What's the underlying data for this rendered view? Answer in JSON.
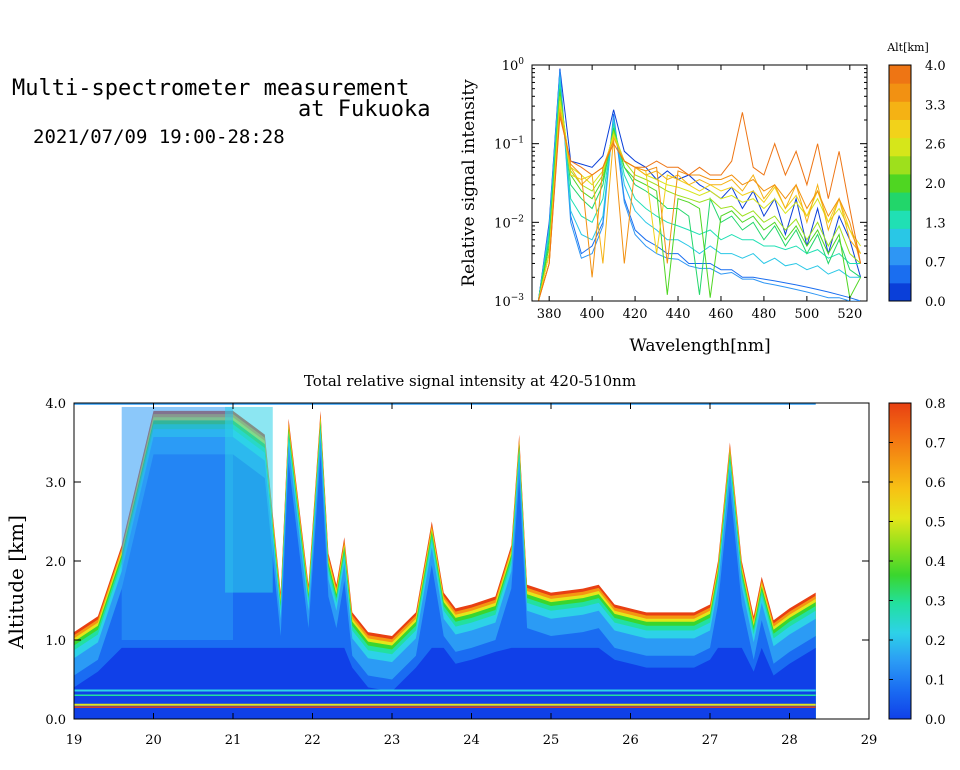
{
  "header": {
    "title_line1": "Multi-spectrometer measurement",
    "title_line2": "at Fukuoka",
    "datetime": "2021/07/09 19:00-28:28"
  },
  "chart_data": [
    {
      "type": "line",
      "title": "",
      "xlabel": "Wavelength[nm]",
      "ylabel": "Relative signal intensity",
      "yscale": "log",
      "xlim": [
        372,
        528
      ],
      "ylim": [
        0.001,
        1
      ],
      "x_ticks": [
        380,
        400,
        420,
        440,
        460,
        480,
        500,
        520
      ],
      "y_ticks": [
        {
          "value": 0.001,
          "label_base": "10",
          "label_exp": "−3"
        },
        {
          "value": 0.01,
          "label_base": "10",
          "label_exp": "−2"
        },
        {
          "value": 0.1,
          "label_base": "10",
          "label_exp": "−1"
        },
        {
          "value": 1,
          "label_base": "10",
          "label_exp": "0"
        }
      ],
      "colorbar": {
        "label": "Alt[km]",
        "ticks": [
          "4.0",
          "3.3",
          "2.6",
          "2.0",
          "1.3",
          "0.7",
          "0.0"
        ],
        "colors": [
          "#0a3fd9",
          "#1a6ef0",
          "#2e96f4",
          "#29c7e6",
          "#20e0b4",
          "#22d66a",
          "#4fd622",
          "#9ee01c",
          "#d6e61a",
          "#f2d21a",
          "#f5b214",
          "#f29112",
          "#ee7514"
        ]
      },
      "x": [
        375,
        380,
        385,
        390,
        395,
        400,
        405,
        410,
        415,
        420,
        425,
        430,
        435,
        440,
        445,
        450,
        455,
        460,
        465,
        470,
        475,
        480,
        485,
        490,
        495,
        500,
        505,
        510,
        515,
        520,
        525
      ],
      "series": [
        {
          "altitude_km": 0.0,
          "color": "#0a3fd9",
          "values": [
            0.001,
            0.01,
            0.9,
            0.06,
            0.055,
            0.05,
            0.07,
            0.27,
            0.08,
            0.06,
            0.05,
            0.035,
            0.045,
            0.035,
            0.04,
            0.03,
            0.025,
            0.02,
            0.028,
            0.015,
            0.025,
            0.012,
            0.02,
            0.007,
            0.02,
            0.005,
            0.015,
            0.004,
            0.012,
            0.006,
            0.002
          ]
        },
        {
          "altitude_km": 0.3,
          "color": "#1a6ef0",
          "values": [
            0.001,
            0.009,
            0.85,
            0.012,
            0.004,
            0.005,
            0.01,
            0.24,
            0.02,
            0.008,
            0.006,
            0.005,
            0.004,
            0.004,
            0.003,
            0.003,
            0.003,
            0.0025,
            0.0025,
            0.002,
            0.002,
            0.0019,
            0.0018,
            0.0017,
            0.0016,
            0.0015,
            0.0014,
            0.0013,
            0.0012,
            0.0011,
            0.001
          ]
        },
        {
          "altitude_km": 0.5,
          "color": "#2e96f4",
          "values": [
            0.001,
            0.009,
            0.85,
            0.01,
            0.0035,
            0.004,
            0.009,
            0.22,
            0.018,
            0.007,
            0.005,
            0.004,
            0.0035,
            0.0034,
            0.0028,
            0.0026,
            0.0026,
            0.0022,
            0.0023,
            0.0019,
            0.0019,
            0.0017,
            0.0016,
            0.0015,
            0.0014,
            0.0013,
            0.0012,
            0.0011,
            0.0011,
            0.001,
            0.001
          ]
        },
        {
          "altitude_km": 0.9,
          "color": "#29c7e6",
          "values": [
            0.001,
            0.008,
            0.7,
            0.014,
            0.007,
            0.006,
            0.012,
            0.2,
            0.03,
            0.014,
            0.01,
            0.008,
            0.006,
            0.006,
            0.005,
            0.004,
            0.005,
            0.004,
            0.004,
            0.0035,
            0.004,
            0.003,
            0.0035,
            0.0028,
            0.003,
            0.0025,
            0.0028,
            0.0022,
            0.0025,
            0.002,
            0.002
          ]
        },
        {
          "altitude_km": 1.3,
          "color": "#20e0b4",
          "values": [
            0.001,
            0.007,
            0.6,
            0.02,
            0.012,
            0.01,
            0.02,
            0.18,
            0.04,
            0.02,
            0.015,
            0.012,
            0.01,
            0.009,
            0.008,
            0.007,
            0.008,
            0.006,
            0.007,
            0.006,
            0.006,
            0.005,
            0.005,
            0.0045,
            0.005,
            0.004,
            0.0045,
            0.0035,
            0.004,
            0.003,
            0.003
          ]
        },
        {
          "altitude_km": 1.6,
          "color": "#22d66a",
          "values": [
            0.001,
            0.006,
            0.5,
            0.03,
            0.02,
            0.015,
            0.03,
            0.16,
            0.05,
            0.03,
            0.025,
            0.02,
            0.015,
            0.015,
            0.012,
            0.0012,
            0.02,
            0.01,
            0.012,
            0.008,
            0.01,
            0.006,
            0.009,
            0.005,
            0.008,
            0.004,
            0.007,
            0.003,
            0.006,
            0.0025,
            0.002
          ]
        },
        {
          "altitude_km": 2.0,
          "color": "#4fd622",
          "values": [
            0.001,
            0.005,
            0.45,
            0.04,
            0.025,
            0.02,
            0.035,
            0.15,
            0.05,
            0.035,
            0.03,
            0.025,
            0.0012,
            0.02,
            0.018,
            0.015,
            0.0011,
            0.012,
            0.014,
            0.01,
            0.012,
            0.008,
            0.01,
            0.006,
            0.009,
            0.005,
            0.008,
            0.004,
            0.007,
            0.0011,
            0.002
          ]
        },
        {
          "altitude_km": 2.3,
          "color": "#9ee01c",
          "values": [
            0.001,
            0.004,
            0.4,
            0.045,
            0.03,
            0.025,
            0.04,
            0.14,
            0.06,
            0.04,
            0.035,
            0.03,
            0.025,
            0.022,
            0.02,
            0.018,
            0.02,
            0.015,
            0.016,
            0.012,
            0.014,
            0.01,
            0.012,
            0.008,
            0.011,
            0.006,
            0.01,
            0.005,
            0.009,
            0.004,
            0.003
          ]
        },
        {
          "altitude_km": 2.6,
          "color": "#d6e61a",
          "values": [
            0.001,
            0.004,
            0.35,
            0.05,
            0.04,
            0.03,
            0.045,
            0.13,
            0.06,
            0.05,
            0.04,
            0.035,
            0.03,
            0.028,
            0.025,
            0.022,
            0.025,
            0.02,
            0.022,
            0.018,
            0.02,
            0.015,
            0.02,
            0.013,
            0.018,
            0.012,
            0.02,
            0.01,
            0.015,
            0.008,
            0.005
          ]
        },
        {
          "altitude_km": 3.0,
          "color": "#f2d21a",
          "values": [
            0.001,
            0.004,
            0.3,
            0.04,
            0.035,
            0.04,
            0.05,
            0.12,
            0.06,
            0.05,
            0.045,
            0.004,
            0.04,
            0.035,
            0.03,
            0.025,
            0.03,
            0.025,
            0.028,
            0.022,
            0.025,
            0.018,
            0.028,
            0.015,
            0.022,
            0.012,
            0.025,
            0.01,
            0.02,
            0.008,
            0.004
          ]
        },
        {
          "altitude_km": 3.3,
          "color": "#f5b214",
          "values": [
            0.001,
            0.003,
            0.28,
            0.05,
            0.03,
            0.04,
            0.003,
            0.12,
            0.06,
            0.05,
            0.04,
            0.045,
            0.035,
            0.04,
            0.03,
            0.035,
            0.03,
            0.03,
            0.035,
            0.025,
            0.04,
            0.02,
            0.03,
            0.015,
            0.03,
            0.01,
            0.03,
            0.008,
            0.02,
            0.006,
            0.004
          ]
        },
        {
          "altitude_km": 3.7,
          "color": "#f29112",
          "values": [
            0.001,
            0.003,
            0.25,
            0.055,
            0.04,
            0.002,
            0.05,
            0.11,
            0.003,
            0.05,
            0.045,
            0.05,
            0.003,
            0.045,
            0.04,
            0.04,
            0.035,
            0.035,
            0.04,
            0.03,
            0.035,
            0.025,
            0.03,
            0.02,
            0.03,
            0.015,
            0.025,
            0.012,
            0.02,
            0.01,
            0.003
          ]
        },
        {
          "altitude_km": 4.0,
          "color": "#ee7514",
          "values": [
            0.001,
            0.003,
            0.22,
            0.06,
            0.05,
            0.04,
            0.05,
            0.1,
            0.06,
            0.05,
            0.05,
            0.06,
            0.05,
            0.05,
            0.04,
            0.05,
            0.04,
            0.04,
            0.06,
            0.25,
            0.05,
            0.04,
            0.1,
            0.04,
            0.08,
            0.03,
            0.1,
            0.02,
            0.08,
            0.015,
            0.003
          ]
        }
      ]
    },
    {
      "type": "heatmap",
      "title": "Total relative signal intensity at 420-510nm",
      "xlabel": "",
      "ylabel": "Altitude [km]",
      "xlim": [
        19,
        29
      ],
      "ylim": [
        0,
        4
      ],
      "x_ticks": [
        "19",
        "20",
        "21",
        "22",
        "23",
        "24",
        "25",
        "26",
        "27",
        "28",
        "29"
      ],
      "y_ticks": [
        "0.0",
        "1.0",
        "2.0",
        "3.0",
        "4.0"
      ],
      "data_end_time": 28.33,
      "colorbar": {
        "min": 0,
        "max": 0.8,
        "ticks": [
          "0.0",
          "0.1",
          "0.2",
          "0.3",
          "0.4",
          "0.5",
          "0.6",
          "0.7",
          "0.8"
        ],
        "stops": [
          "#1040e8",
          "#1a6cf2",
          "#2b9bf5",
          "#2dd2e8",
          "#22e0a0",
          "#3ad62e",
          "#8ee01c",
          "#e4e61a",
          "#f7c214",
          "#f59612",
          "#f26a12",
          "#e84012"
        ]
      },
      "cloud_base_profile_km": [
        {
          "t": 19.0,
          "h": 1.1
        },
        {
          "t": 19.3,
          "h": 1.3
        },
        {
          "t": 19.6,
          "h": 2.2
        },
        {
          "t": 20.0,
          "h": 3.9
        },
        {
          "t": 21.0,
          "h": 3.9
        },
        {
          "t": 21.4,
          "h": 3.6
        },
        {
          "t": 21.6,
          "h": 1.6
        },
        {
          "t": 21.7,
          "h": 3.8
        },
        {
          "t": 21.95,
          "h": 1.7
        },
        {
          "t": 22.1,
          "h": 3.9
        },
        {
          "t": 22.2,
          "h": 2.1
        },
        {
          "t": 22.3,
          "h": 1.7
        },
        {
          "t": 22.4,
          "h": 2.3
        },
        {
          "t": 22.5,
          "h": 1.35
        },
        {
          "t": 22.7,
          "h": 1.1
        },
        {
          "t": 23.0,
          "h": 1.05
        },
        {
          "t": 23.3,
          "h": 1.35
        },
        {
          "t": 23.5,
          "h": 2.5
        },
        {
          "t": 23.65,
          "h": 1.6
        },
        {
          "t": 23.8,
          "h": 1.4
        },
        {
          "t": 24.0,
          "h": 1.45
        },
        {
          "t": 24.3,
          "h": 1.55
        },
        {
          "t": 24.5,
          "h": 2.2
        },
        {
          "t": 24.6,
          "h": 3.6
        },
        {
          "t": 24.7,
          "h": 1.7
        },
        {
          "t": 25.0,
          "h": 1.6
        },
        {
          "t": 25.4,
          "h": 1.65
        },
        {
          "t": 25.6,
          "h": 1.7
        },
        {
          "t": 25.8,
          "h": 1.45
        },
        {
          "t": 26.2,
          "h": 1.35
        },
        {
          "t": 26.8,
          "h": 1.35
        },
        {
          "t": 27.0,
          "h": 1.45
        },
        {
          "t": 27.1,
          "h": 2.0
        },
        {
          "t": 27.25,
          "h": 3.5
        },
        {
          "t": 27.4,
          "h": 2.0
        },
        {
          "t": 27.55,
          "h": 1.3
        },
        {
          "t": 27.65,
          "h": 1.8
        },
        {
          "t": 27.8,
          "h": 1.25
        },
        {
          "t": 28.0,
          "h": 1.4
        },
        {
          "t": 28.33,
          "h": 1.6
        }
      ]
    }
  ]
}
